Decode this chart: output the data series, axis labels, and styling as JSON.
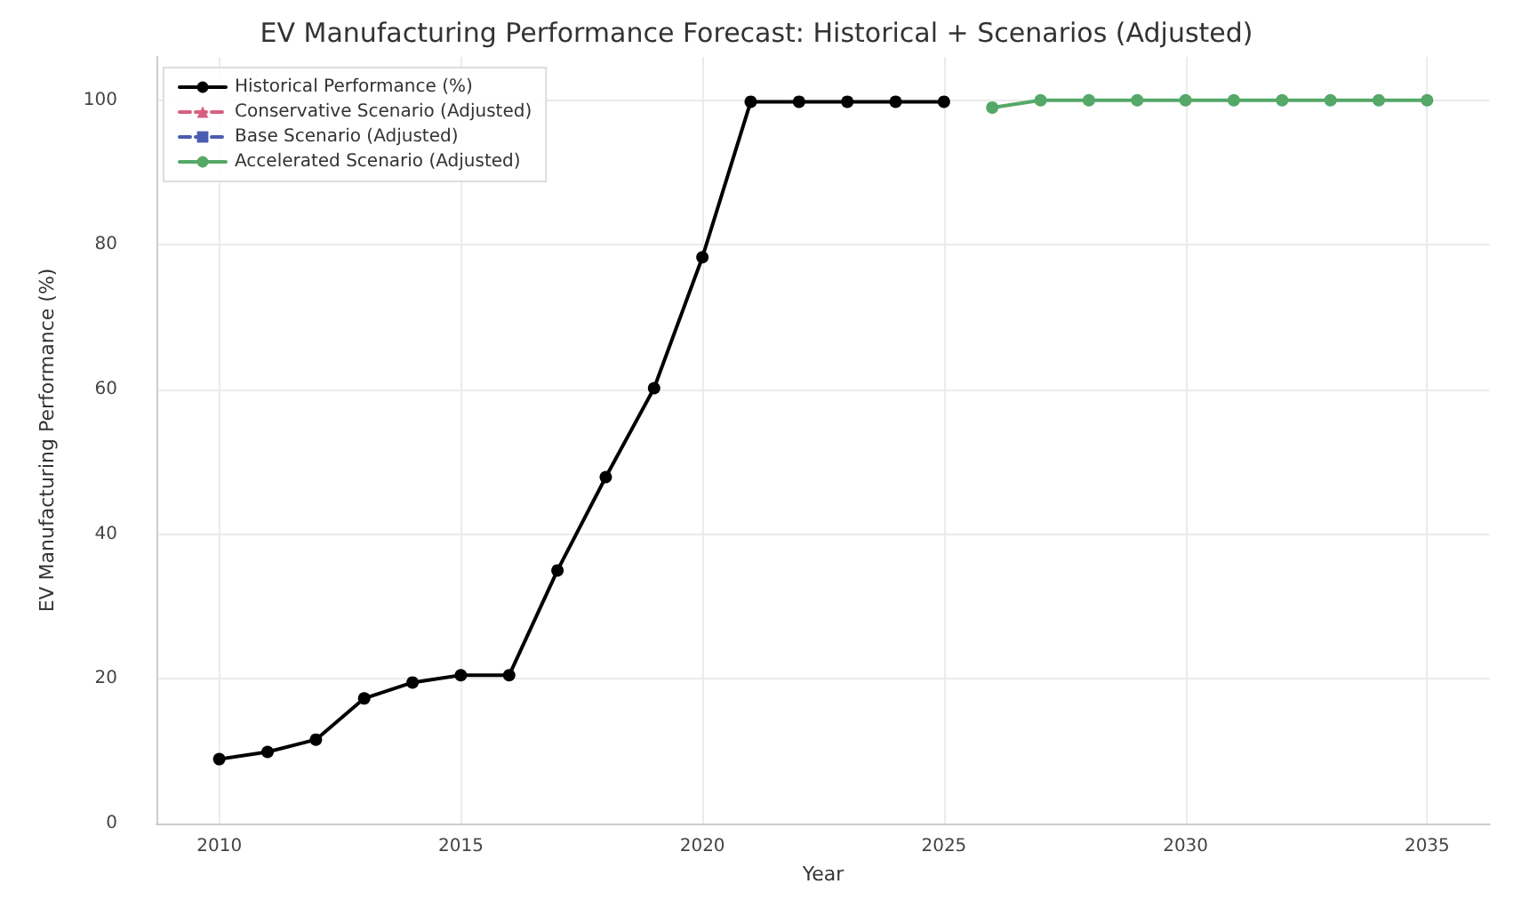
{
  "chart_data": {
    "type": "line",
    "title": "EV Manufacturing Performance Forecast: Historical + Scenarios (Adjusted)",
    "xlabel": "Year",
    "ylabel": "EV Manufacturing Performance (%)",
    "series": [
      {
        "name": "Historical Performance (%)",
        "color": "#000000",
        "marker": "circle",
        "line_style": "solid",
        "x": [
          2010,
          2011,
          2012,
          2013,
          2014,
          2015,
          2016,
          2017,
          2018,
          2019,
          2020,
          2021,
          2022,
          2023,
          2024,
          2025
        ],
        "values": [
          8.9,
          9.9,
          11.6,
          17.3,
          19.5,
          20.5,
          20.5,
          35,
          47.9,
          60.2,
          78.3,
          99.8,
          99.8,
          99.8,
          99.8,
          99.8
        ]
      },
      {
        "name": "Conservative Scenario (Adjusted)",
        "color": "#d65f7f",
        "marker": "triangle",
        "line_style": "dashed"
      },
      {
        "name": "Base Scenario (Adjusted)",
        "color": "#4c5cb0",
        "marker": "square",
        "line_style": "dashed"
      },
      {
        "name": "Accelerated Scenario (Adjusted)",
        "color": "#55a868",
        "marker": "circle",
        "line_style": "solid",
        "x": [
          2026,
          2027,
          2028,
          2029,
          2030,
          2031,
          2032,
          2033,
          2034,
          2035
        ],
        "values": [
          99,
          100,
          100,
          100,
          100,
          100,
          100,
          100,
          100,
          100
        ]
      }
    ],
    "xlim": [
      2008.7,
      2036.3
    ],
    "xticks": [
      2010,
      2015,
      2020,
      2025,
      2030,
      2035
    ],
    "ylim": [
      0,
      106
    ],
    "yticks": [
      0,
      20,
      40,
      60,
      80,
      100
    ],
    "grid": true,
    "legend": "top left"
  }
}
